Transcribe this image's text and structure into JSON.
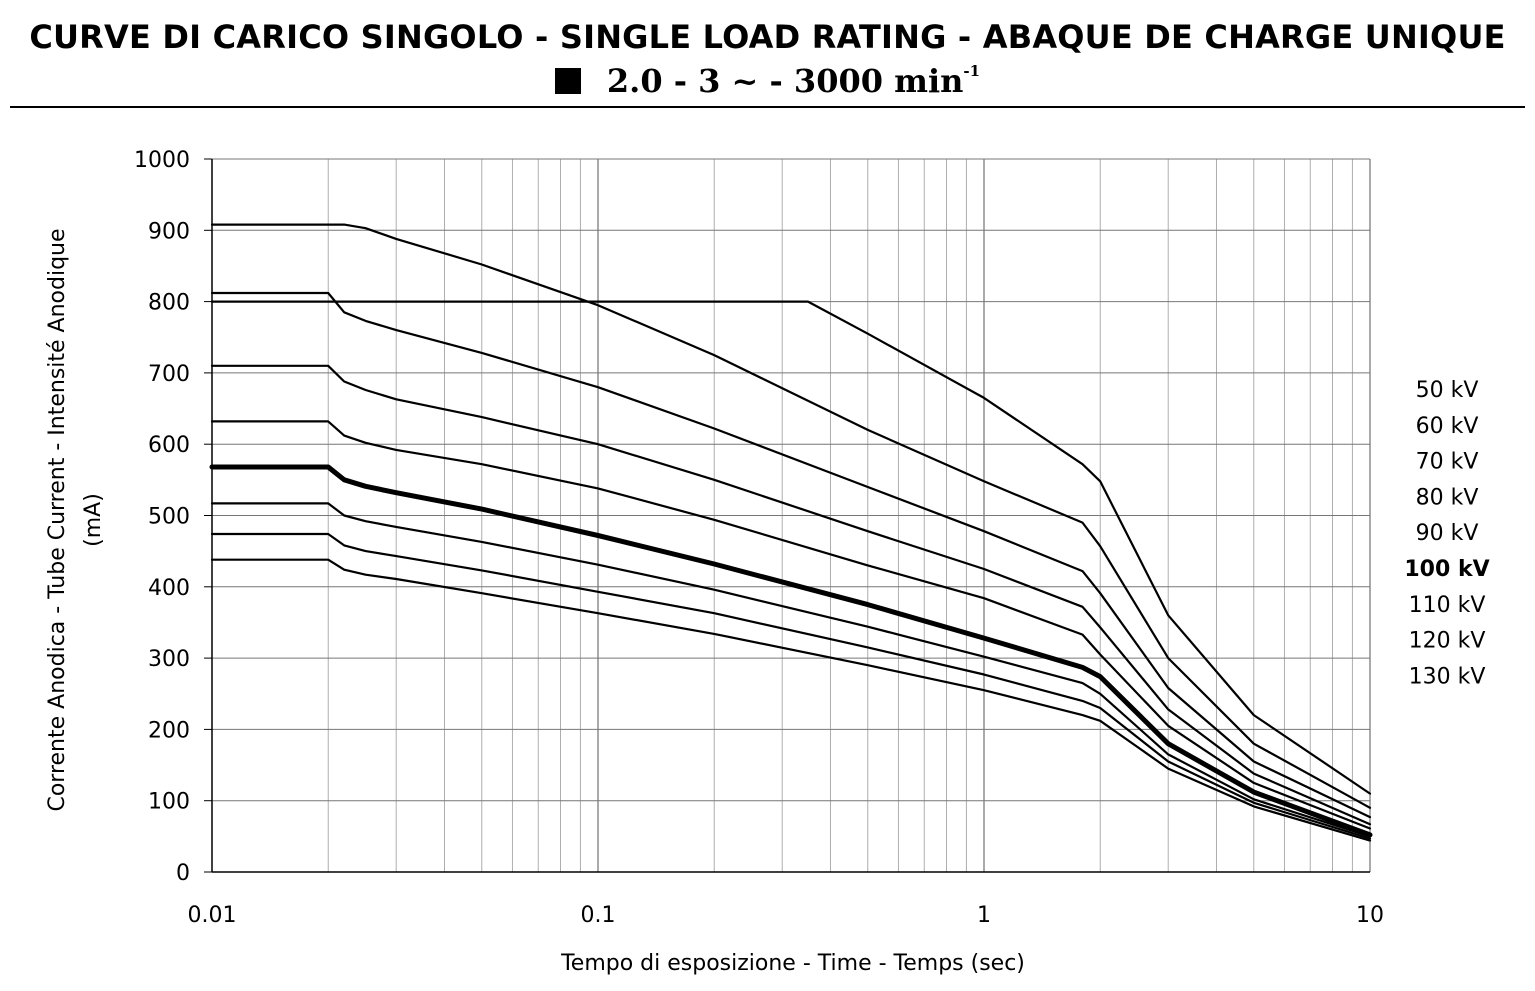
{
  "header": {
    "title": "CURVE DI CARICO SINGOLO - SINGLE LOAD RATING - ABAQUE DE CHARGE UNIQUE",
    "subtitle_main": "2.0 -  3 ~  -  3000 min",
    "subtitle_sup": "-1"
  },
  "chart_data": {
    "type": "line",
    "xscale": "log",
    "xlim": [
      0.01,
      10
    ],
    "ylim": [
      0,
      1000
    ],
    "grid": true,
    "xlabel": "Tempo di esposizione - Time - Temps  (sec)",
    "ylabel_lines": [
      "Corrente Anodica - Tube Current - Intensité Anodique",
      "(mA)"
    ],
    "xticks": [
      {
        "value": 0.01,
        "label": "0.01"
      },
      {
        "value": 0.1,
        "label": "0.1"
      },
      {
        "value": 1,
        "label": "1"
      },
      {
        "value": 10,
        "label": "10"
      }
    ],
    "yticks": [
      0,
      100,
      200,
      300,
      400,
      500,
      600,
      700,
      800,
      900,
      1000
    ],
    "legend_position": "right",
    "series": [
      {
        "name": "50 kV",
        "bold": false,
        "x": [
          0.01,
          0.35,
          0.5,
          1,
          1.8,
          2,
          3,
          5,
          10
        ],
        "y": [
          800,
          800,
          755,
          665,
          572,
          548,
          360,
          220,
          110
        ]
      },
      {
        "name": "60 kV",
        "bold": false,
        "x": [
          0.01,
          0.02,
          0.022,
          0.025,
          0.03,
          0.05,
          0.1,
          0.2,
          0.5,
          1,
          1.8,
          2,
          3,
          5,
          10
        ],
        "y": [
          908,
          908,
          908,
          903,
          888,
          852,
          795,
          725,
          620,
          548,
          490,
          457,
          300,
          180,
          90
        ]
      },
      {
        "name": "70 kV",
        "bold": false,
        "x": [
          0.01,
          0.02,
          0.022,
          0.025,
          0.03,
          0.05,
          0.1,
          0.2,
          0.5,
          1,
          1.8,
          2,
          3,
          5,
          10
        ],
        "y": [
          812,
          812,
          785,
          773,
          760,
          728,
          680,
          622,
          540,
          478,
          422,
          391,
          258,
          155,
          77
        ]
      },
      {
        "name": "80 kV",
        "bold": false,
        "x": [
          0.01,
          0.02,
          0.022,
          0.025,
          0.03,
          0.05,
          0.1,
          0.2,
          0.5,
          1,
          1.8,
          2,
          3,
          5,
          10
        ],
        "y": [
          710,
          710,
          688,
          676,
          663,
          638,
          600,
          550,
          478,
          425,
          372,
          343,
          228,
          138,
          67
        ]
      },
      {
        "name": "90 kV",
        "bold": false,
        "x": [
          0.01,
          0.02,
          0.022,
          0.025,
          0.03,
          0.05,
          0.1,
          0.2,
          0.5,
          1,
          1.8,
          2,
          3,
          5,
          10
        ],
        "y": [
          632,
          632,
          612,
          602,
          592,
          572,
          538,
          494,
          430,
          384,
          333,
          305,
          205,
          125,
          61
        ]
      },
      {
        "name": "100 kV",
        "bold": true,
        "x": [
          0.01,
          0.02,
          0.022,
          0.025,
          0.03,
          0.05,
          0.1,
          0.2,
          0.5,
          1,
          1.8,
          2,
          3,
          5,
          10
        ],
        "y": [
          568,
          568,
          550,
          541,
          532,
          509,
          472,
          432,
          375,
          328,
          287,
          274,
          180,
          112,
          52
        ]
      },
      {
        "name": "110 kV",
        "bold": false,
        "x": [
          0.01,
          0.02,
          0.022,
          0.025,
          0.03,
          0.05,
          0.1,
          0.2,
          0.5,
          1,
          1.8,
          2,
          3,
          5,
          10
        ],
        "y": [
          517,
          517,
          500,
          492,
          484,
          463,
          431,
          396,
          344,
          302,
          265,
          250,
          165,
          102,
          50
        ]
      },
      {
        "name": "120 kV",
        "bold": false,
        "x": [
          0.01,
          0.02,
          0.022,
          0.025,
          0.03,
          0.05,
          0.1,
          0.2,
          0.5,
          1,
          1.8,
          2,
          3,
          5,
          10
        ],
        "y": [
          474,
          474,
          458,
          450,
          443,
          423,
          393,
          363,
          315,
          277,
          240,
          230,
          155,
          97,
          47
        ]
      },
      {
        "name": "130 kV",
        "bold": false,
        "x": [
          0.01,
          0.02,
          0.022,
          0.025,
          0.03,
          0.05,
          0.1,
          0.2,
          0.5,
          1,
          1.8,
          2,
          3,
          5,
          10
        ],
        "y": [
          438,
          438,
          424,
          417,
          411,
          391,
          363,
          334,
          290,
          255,
          220,
          212,
          145,
          92,
          44
        ]
      }
    ]
  }
}
